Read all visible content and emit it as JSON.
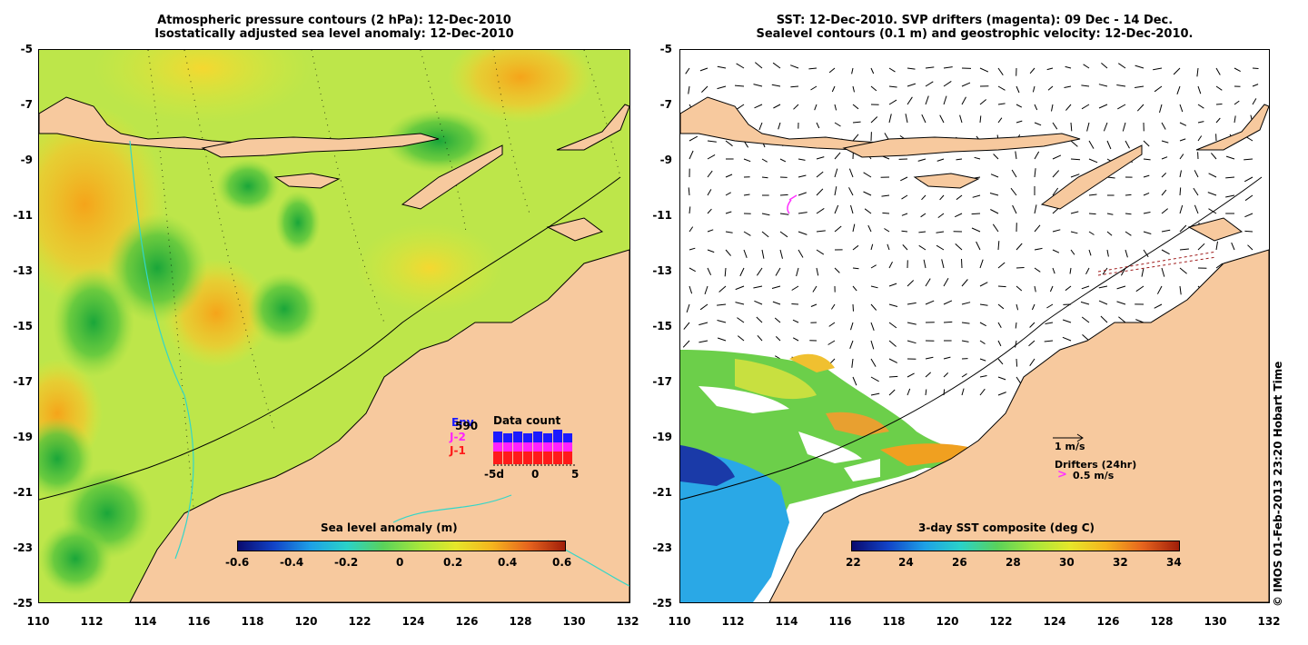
{
  "left": {
    "title_line1": "Atmospheric pressure contours (2 hPa): 12-Dec-2010",
    "title_line2": "Isostatically adjusted sea level anomaly: 12-Dec-2010",
    "colorbar_label": "Sea level anomaly (m)",
    "colorbar_ticks": [
      "-0.6",
      "-0.4",
      "-0.2",
      "0",
      "0.2",
      "0.4",
      "0.6"
    ],
    "inset": {
      "title": "Data count",
      "legend": [
        "Env",
        "J-2",
        "J-1"
      ],
      "legend_colors": [
        "#1a1aff",
        "#ff22ff",
        "#ff1a1a"
      ],
      "count": "590",
      "xticks": [
        "-5d",
        "0",
        "5"
      ]
    }
  },
  "right": {
    "title_line1": "SST: 12-Dec-2010. SVP drifters (magenta): 09 Dec - 14 Dec.",
    "title_line2": "Sealevel contours (0.1 m) and geostrophic velocity: 12-Dec-2010.",
    "colorbar_label": "3-day SST composite (deg C)",
    "colorbar_ticks": [
      "22",
      "24",
      "26",
      "28",
      "30",
      "32",
      "34"
    ],
    "velocity_scale": "1 m/s",
    "drifters_label": "Drifters (24hr)",
    "drifter_scale": "0.5 m/s"
  },
  "axes": {
    "y_ticks": [
      "-5",
      "-7",
      "-9",
      "-11",
      "-13",
      "-15",
      "-17",
      "-19",
      "-21",
      "-23",
      "-25"
    ],
    "x_ticks": [
      "110",
      "112",
      "114",
      "116",
      "118",
      "120",
      "122",
      "124",
      "126",
      "128",
      "130",
      "132"
    ]
  },
  "colors": {
    "land": "#f7c99e",
    "ocean_anomaly": "#b8e84a",
    "drifter": "#ff33ff"
  },
  "copyright": "© IMOS 01-Feb-2013 23:20 Hobart Time"
}
